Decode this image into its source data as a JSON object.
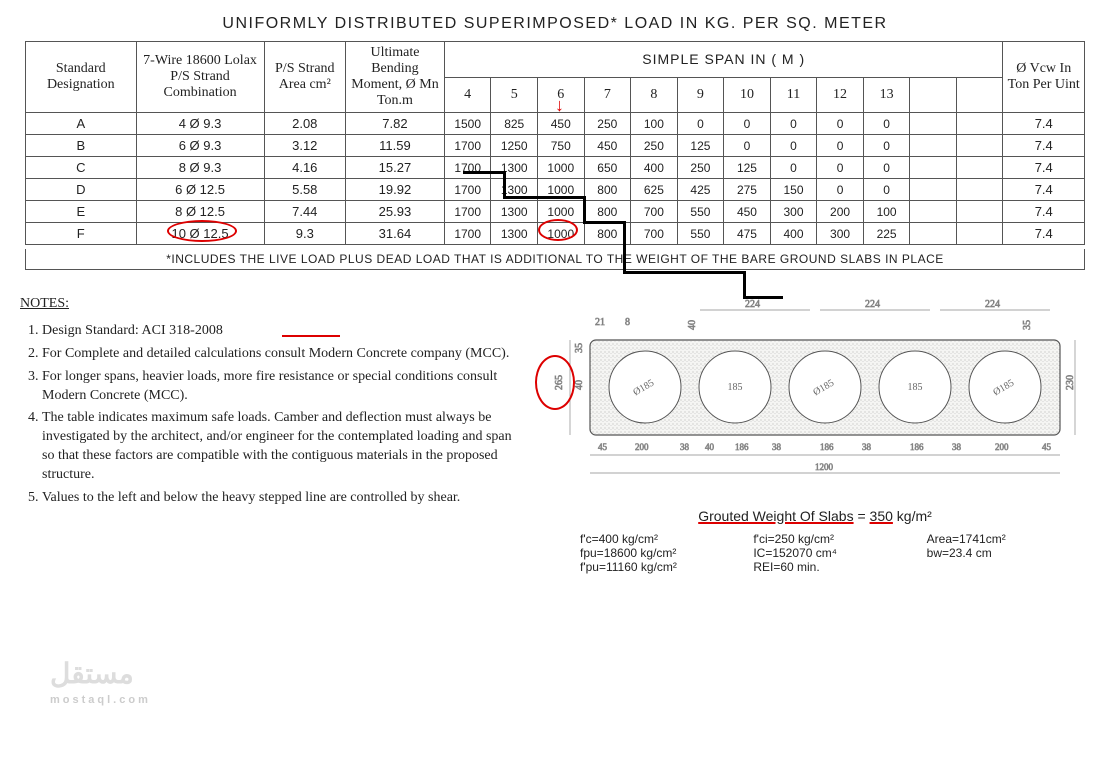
{
  "title": "UNIFORMLY DISTRIBUTED SUPERIMPOSED* LOAD IN KG. PER SQ. METER",
  "columns": {
    "designation": "Standard Designation",
    "wire": "7-Wire 18600 Lolax P/S Strand Combination",
    "area": "P/S Strand Area cm²",
    "moment": "Ultimate Bending Moment, Ø Mn Ton.m",
    "span_header": "SIMPLE SPAN IN ( M )",
    "vcw": "Ø Vcw In Ton Per Uint"
  },
  "span_labels": [
    "4",
    "5",
    "6",
    "7",
    "8",
    "9",
    "10",
    "11",
    "12",
    "13",
    "",
    ""
  ],
  "rows": [
    {
      "d": "A",
      "wire": "4 Ø 9.3",
      "area": "2.08",
      "mn": "7.82",
      "cells": [
        "1500",
        "825",
        "450",
        "250",
        "100",
        "0",
        "0",
        "0",
        "0",
        "0",
        "",
        ""
      ],
      "vcw": "7.4"
    },
    {
      "d": "B",
      "wire": "6 Ø 9.3",
      "area": "3.12",
      "mn": "11.59",
      "cells": [
        "1700",
        "1250",
        "750",
        "450",
        "250",
        "125",
        "0",
        "0",
        "0",
        "0",
        "",
        ""
      ],
      "vcw": "7.4"
    },
    {
      "d": "C",
      "wire": "8 Ø 9.3",
      "area": "4.16",
      "mn": "15.27",
      "cells": [
        "1700",
        "1300",
        "1000",
        "650",
        "400",
        "250",
        "125",
        "0",
        "0",
        "0",
        "",
        ""
      ],
      "vcw": "7.4"
    },
    {
      "d": "D",
      "wire": "6 Ø 12.5",
      "area": "5.58",
      "mn": "19.92",
      "cells": [
        "1700",
        "1300",
        "1000",
        "800",
        "625",
        "425",
        "275",
        "150",
        "0",
        "0",
        "",
        ""
      ],
      "vcw": "7.4"
    },
    {
      "d": "E",
      "wire": "8 Ø 12.5",
      "area": "7.44",
      "mn": "25.93",
      "cells": [
        "1700",
        "1300",
        "1000",
        "800",
        "700",
        "550",
        "450",
        "300",
        "200",
        "100",
        "",
        ""
      ],
      "vcw": "7.4"
    },
    {
      "d": "F",
      "wire": "10 Ø 12.5",
      "area": "9.3",
      "mn": "31.64",
      "cells": [
        "1700",
        "1300",
        "1000",
        "800",
        "700",
        "550",
        "475",
        "400",
        "300",
        "225",
        "",
        ""
      ],
      "vcw": "7.4"
    }
  ],
  "footnote": "*INCLUDES THE LIVE LOAD PLUS DEAD LOAD THAT IS ADDITIONAL TO THE WEIGHT OF THE BARE GROUND SLABS IN PLACE",
  "notes_title": "NOTES:",
  "notes": [
    "Design Standard: ACI 318-2008",
    "For Complete and detailed calculations consult Modern Concrete company (MCC).",
    "For longer spans, heavier loads, more fire resistance or special conditions consult Modern Concrete (MCC).",
    "The table indicates maximum safe loads. Camber and deflection must always be investigated by the architect, and/or engineer for the contemplated loading and span so that these factors are compatible with the contiguous materials in the proposed structure.",
    "Values to the left and below the heavy stepped line are controlled by shear."
  ],
  "diagram": {
    "overall_width": "1200",
    "overall_height": "230",
    "hole_dia": "Ø185",
    "hole_count": 5,
    "top_dims": [
      "224",
      "224",
      "224"
    ],
    "edge_top": [
      "21",
      "8"
    ],
    "left_dims": [
      "35",
      "40",
      "265"
    ],
    "right_dims": [
      "35",
      "40",
      "35"
    ],
    "bottom_chain": [
      "45",
      "200",
      "38",
      "40",
      "186",
      "38",
      "186",
      "38",
      "186",
      "38",
      "200",
      "45"
    ],
    "section_label_1": "185",
    "section_label_2": "185"
  },
  "grouted_label": "Grouted Weight Of Slabs",
  "grouted_value": "350",
  "grouted_unit": "kg/m²",
  "props": {
    "fc": "f'c=400 kg/cm²",
    "fpu": "fpu=18600 kg/cm²",
    "fpu2": "f'pu=11160 kg/cm²",
    "fci": "f'ci=250 kg/cm²",
    "ic": "IC=152070 cm⁴",
    "rei": "REI=60 min.",
    "area": "Area=1741cm²",
    "bw": "bw=23.4 cm"
  },
  "watermark": "مستقل",
  "watermark_sub": "mostaql.com",
  "colors": {
    "annotate": "#d00",
    "border": "#555",
    "text": "#222"
  }
}
